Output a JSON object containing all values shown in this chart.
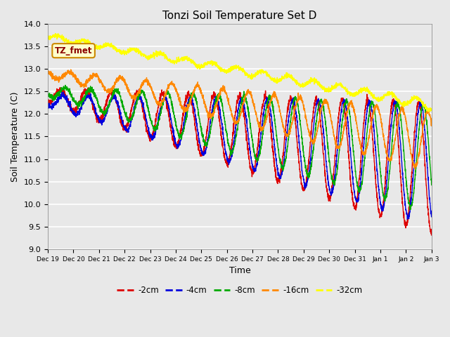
{
  "title": "Tonzi Soil Temperature Set D",
  "xlabel": "Time",
  "ylabel": "Soil Temperature (C)",
  "ylim": [
    9.0,
    14.0
  ],
  "yticks": [
    9.0,
    9.5,
    10.0,
    10.5,
    11.0,
    11.5,
    12.0,
    12.5,
    13.0,
    13.5,
    14.0
  ],
  "series": {
    "-2cm": {
      "color": "#dd0000",
      "linewidth": 1.0
    },
    "-4cm": {
      "color": "#0000dd",
      "linewidth": 1.0
    },
    "-8cm": {
      "color": "#00aa00",
      "linewidth": 1.0
    },
    "-16cm": {
      "color": "#ff8800",
      "linewidth": 1.0
    },
    "-32cm": {
      "color": "#ffff00",
      "linewidth": 1.0
    }
  },
  "legend_order": [
    "-2cm",
    "-4cm",
    "-8cm",
    "-16cm",
    "-32cm"
  ],
  "annotation_text": "TZ_fmet",
  "plot_bg_color": "#e8e8e8",
  "grid_color": "#ffffff",
  "n_points": 2880,
  "end_day": 15.0,
  "xtick_labels": [
    "Dec 19",
    "Dec 20",
    "Dec 21",
    "Dec 22",
    "Dec 23",
    "Dec 24",
    "Dec 25",
    "Dec 26",
    "Dec 27",
    "Dec 28",
    "Dec 29",
    "Dec 30",
    "Dec 31",
    "Jan 1",
    "Jan 2",
    "Jan 3"
  ]
}
